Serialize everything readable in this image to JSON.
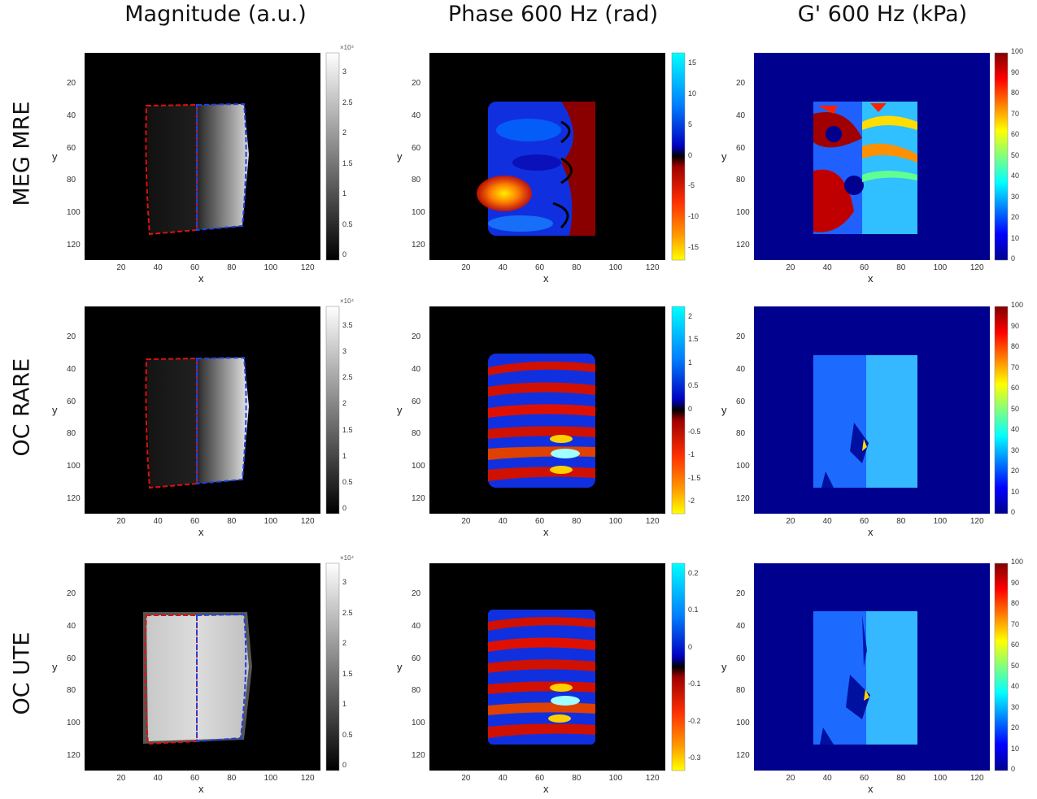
{
  "columns": [
    "Magnitude (a.u.)",
    "Phase 600 Hz (rad)",
    "G' 600 Hz (kPa)"
  ],
  "rows": [
    "MEG MRE",
    "OC RARE",
    "OC UTE"
  ],
  "axes": {
    "xlabel": "x",
    "ylabel": "y",
    "xticks": [
      "20",
      "40",
      "60",
      "80",
      "100",
      "120"
    ],
    "yticks": [
      "20",
      "40",
      "60",
      "80",
      "100",
      "120"
    ]
  },
  "magnitude_colorbars": [
    {
      "exponent": "×10⁴",
      "ticks": [
        "3",
        "2.5",
        "2",
        "1.5",
        "1",
        "0.5",
        "0"
      ]
    },
    {
      "exponent": "×10⁴",
      "ticks": [
        "3.5",
        "3",
        "2.5",
        "2",
        "1.5",
        "1",
        "0.5",
        "0"
      ]
    },
    {
      "exponent": "×10⁴",
      "ticks": [
        "3",
        "2.5",
        "2",
        "1.5",
        "1",
        "0.5",
        "0"
      ]
    }
  ],
  "phase_colorbars": [
    {
      "ticks": [
        "15",
        "10",
        "5",
        "0",
        "-5",
        "-10",
        "-15"
      ]
    },
    {
      "ticks": [
        "2",
        "1.5",
        "1",
        "0.5",
        "0",
        "-0.5",
        "-1",
        "-1.5",
        "-2"
      ]
    },
    {
      "ticks": [
        "0.2",
        "0.1",
        "0",
        "-0.1",
        "-0.2",
        "-0.3"
      ]
    }
  ],
  "modulus_colorbar": {
    "ticks": [
      "100",
      "90",
      "80",
      "70",
      "60",
      "50",
      "40",
      "30",
      "20",
      "10",
      "0"
    ]
  },
  "colors": {
    "roi_left": "#e01010",
    "roi_right": "#2040e0",
    "background": "#000000",
    "jet_low": "#00008f"
  }
}
